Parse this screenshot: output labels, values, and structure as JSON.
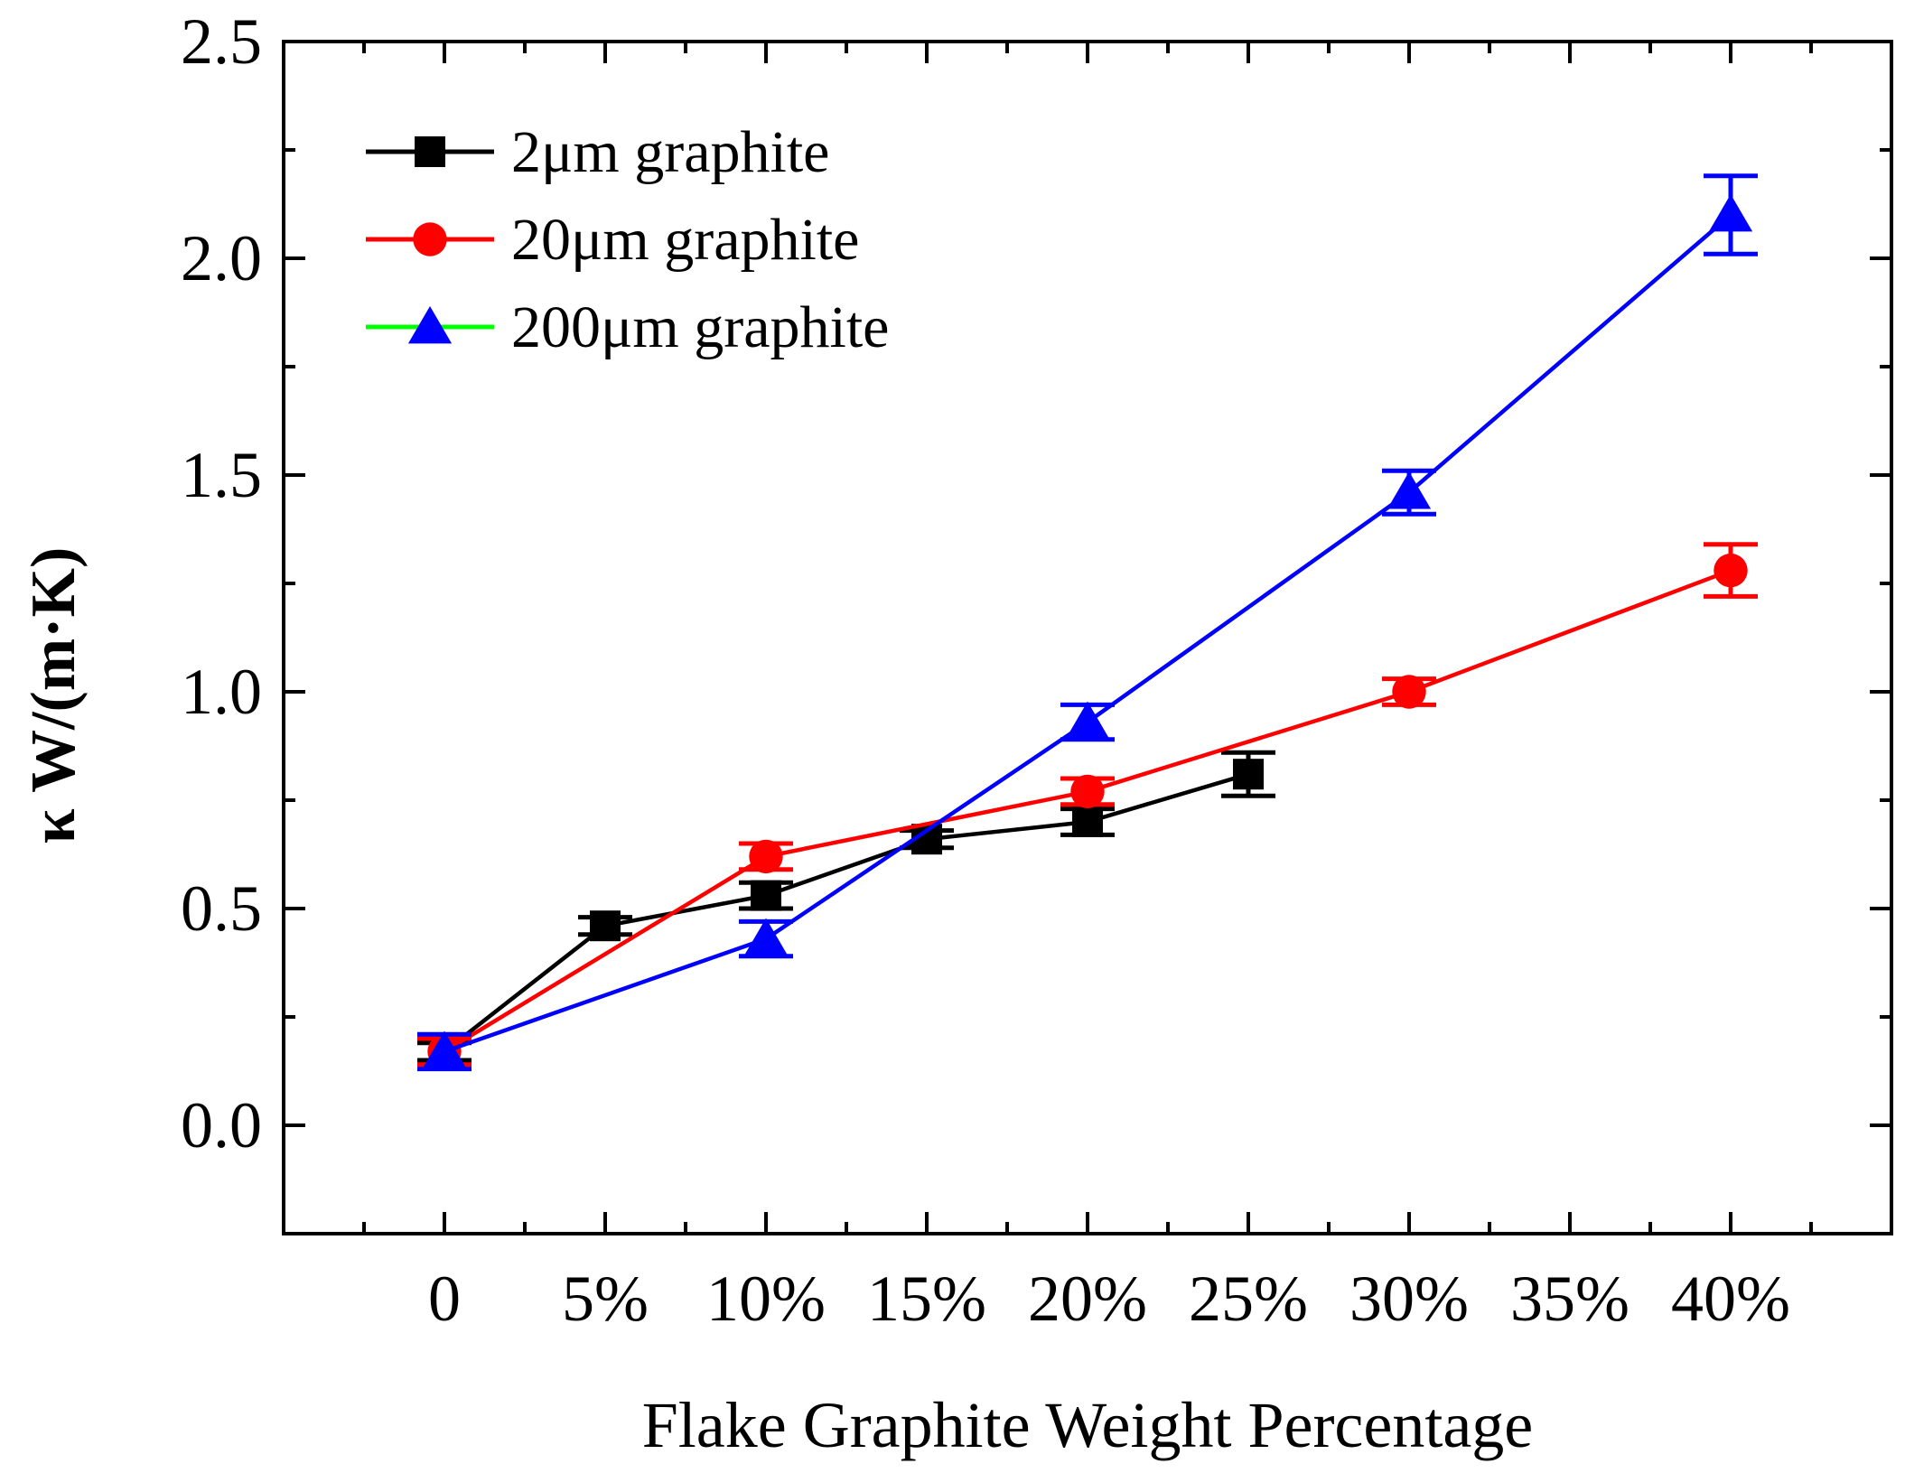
{
  "chart_data": {
    "type": "line",
    "title": "",
    "xlabel": "Flake Graphite Weight Percentage",
    "ylabel": "κ W/(m·K)",
    "x": [
      0,
      5,
      10,
      15,
      20,
      25,
      30,
      35,
      40
    ],
    "xlim": [
      -5,
      45
    ],
    "ylim": [
      -0.25,
      2.5
    ],
    "x_tick_values": [
      0,
      5,
      10,
      15,
      20,
      25,
      30,
      35,
      40
    ],
    "x_tick_labels": [
      "0",
      "5%",
      "10%",
      "15%",
      "20%",
      "25%",
      "30%",
      "35%",
      "40%"
    ],
    "y_tick_values": [
      0,
      0.5,
      1.0,
      1.5,
      2.0,
      2.5
    ],
    "y_tick_labels": [
      "0.0",
      "0.5",
      "1.0",
      "1.5",
      "2.0",
      "2.5"
    ],
    "grid": false,
    "legend_position": "top-left",
    "series": [
      {
        "name": "2μm graphite",
        "color": "#000000",
        "marker": "square",
        "x": [
          0,
          5,
          10,
          15,
          20,
          25
        ],
        "values": [
          0.17,
          0.46,
          0.53,
          0.66,
          0.7,
          0.81
        ],
        "errors": [
          0.02,
          0.02,
          0.03,
          0.02,
          0.03,
          0.05
        ]
      },
      {
        "name": "20μm graphite",
        "color": "#ff0000",
        "marker": "circle",
        "x": [
          0,
          10,
          20,
          30,
          40
        ],
        "values": [
          0.17,
          0.62,
          0.77,
          1.0,
          1.28
        ],
        "errors": [
          0.03,
          0.03,
          0.03,
          0.03,
          0.06
        ]
      },
      {
        "name": "200μm graphite",
        "color": "#0000ff",
        "line_color_legend": "#00ff00",
        "marker": "triangle",
        "x": [
          0,
          10,
          20,
          30,
          40
        ],
        "values": [
          0.17,
          0.43,
          0.93,
          1.46,
          2.1
        ],
        "errors": [
          0.04,
          0.04,
          0.04,
          0.05,
          0.09
        ]
      }
    ]
  }
}
